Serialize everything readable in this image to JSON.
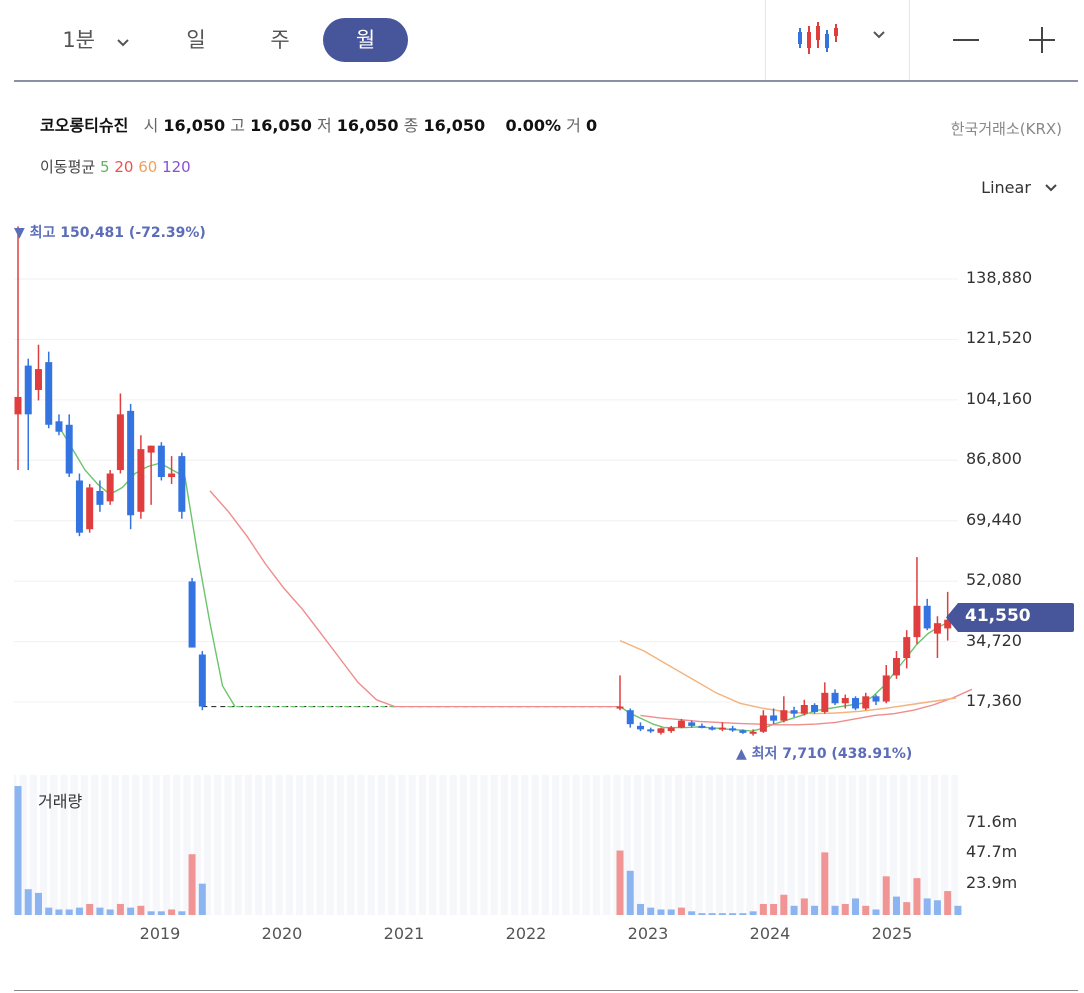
{
  "toolbar": {
    "minute_label": "1분",
    "day_label": "일",
    "week_label": "주",
    "month_label": "월",
    "minus_label": "—",
    "plus_label": "+",
    "active_color": "#47559a"
  },
  "info": {
    "name": "코오롱티슈진",
    "open_label": "시",
    "open": "16,050",
    "high_label": "고",
    "high": "16,050",
    "low_label": "저",
    "low": "16,050",
    "close_label": "종",
    "close": "16,050",
    "change": "0.00%",
    "volume_label": "거",
    "volume": "0",
    "exchange": "한국거래소(KRX)"
  },
  "ma_legend": {
    "label": "이동평균",
    "periods": [
      "5",
      "20",
      "60",
      "120"
    ],
    "colors": [
      "#5cb85c",
      "#e8534f",
      "#f0a15b",
      "#8a4fd6"
    ]
  },
  "scale_label": "Linear",
  "colors": {
    "up": "#e03e3e",
    "down": "#3474e0",
    "up_vol": "#f09494",
    "down_vol": "#8cb4f0",
    "ma5": "#6cc46c",
    "ma20": "#f08c8c",
    "ma60": "#f5b27a",
    "grid": "#f0f0f0",
    "dashed": "#333333",
    "badge": "#47559a"
  },
  "chart_data": {
    "type": "candlestick",
    "interval": "monthly",
    "price_ticks": [
      "138,880",
      "121,520",
      "104,160",
      "86,800",
      "69,440",
      "52,080",
      "34,720",
      "17,360"
    ],
    "ylim": [
      0,
      159000
    ],
    "current_price": "41,550",
    "high_note": "▼ 최고 150,481 (-72.39%)",
    "low_note": "▲ 최저 7,710 (438.91%)",
    "volume_title": "거래량",
    "volume_ticks": [
      "71.6m",
      "47.7m",
      "23.9m"
    ],
    "volume_ylim": [
      0,
      90
    ],
    "year_labels": [
      "2019",
      "2020",
      "2021",
      "2022",
      "2023",
      "2024",
      "2025"
    ],
    "flat_price": 16050,
    "segment1_candles": [
      {
        "o": 100000,
        "h": 154000,
        "l": 84000,
        "c": 105000
      },
      {
        "o": 114000,
        "h": 116000,
        "l": 84000,
        "c": 100000
      },
      {
        "o": 107000,
        "h": 120000,
        "l": 104000,
        "c": 113000
      },
      {
        "o": 115000,
        "h": 118000,
        "l": 96000,
        "c": 97000
      },
      {
        "o": 98000,
        "h": 100000,
        "l": 94000,
        "c": 95000
      },
      {
        "o": 97000,
        "h": 100000,
        "l": 82000,
        "c": 83000
      },
      {
        "o": 81000,
        "h": 83000,
        "l": 65000,
        "c": 66000
      },
      {
        "o": 67000,
        "h": 80000,
        "l": 66000,
        "c": 79000
      },
      {
        "o": 78000,
        "h": 81000,
        "l": 72000,
        "c": 74000
      },
      {
        "o": 75000,
        "h": 84000,
        "l": 74000,
        "c": 83000
      },
      {
        "o": 84000,
        "h": 106000,
        "l": 83000,
        "c": 100000
      },
      {
        "o": 101000,
        "h": 103000,
        "l": 67000,
        "c": 71000
      },
      {
        "o": 72000,
        "h": 94000,
        "l": 70000,
        "c": 90000
      },
      {
        "o": 89000,
        "h": 91000,
        "l": 74000,
        "c": 91000
      },
      {
        "o": 91000,
        "h": 92000,
        "l": 81000,
        "c": 82000
      },
      {
        "o": 82000,
        "h": 88000,
        "l": 80000,
        "c": 83000
      },
      {
        "o": 88000,
        "h": 89000,
        "l": 70000,
        "c": 72000
      },
      {
        "o": 52000,
        "h": 53000,
        "l": 33000,
        "c": 33000
      },
      {
        "o": 31000,
        "h": 32000,
        "l": 15000,
        "c": 16050
      }
    ],
    "segment1_volume": [
      {
        "v": 70,
        "up": false
      },
      {
        "v": 14,
        "up": false
      },
      {
        "v": 12,
        "up": false
      },
      {
        "v": 4,
        "up": false
      },
      {
        "v": 3,
        "up": false
      },
      {
        "v": 3,
        "up": false
      },
      {
        "v": 4,
        "up": false
      },
      {
        "v": 6,
        "up": true
      },
      {
        "v": 4,
        "up": false
      },
      {
        "v": 3,
        "up": false
      },
      {
        "v": 6,
        "up": true
      },
      {
        "v": 4,
        "up": false
      },
      {
        "v": 5,
        "up": true
      },
      {
        "v": 2,
        "up": false
      },
      {
        "v": 2,
        "up": false
      },
      {
        "v": 3,
        "up": true
      },
      {
        "v": 2,
        "up": false
      },
      {
        "v": 33,
        "up": true
      },
      {
        "v": 17,
        "up": false
      }
    ],
    "segment2_candles": [
      {
        "o": 16050,
        "h": 25000,
        "l": 15000,
        "c": 16050
      },
      {
        "o": 15000,
        "h": 15500,
        "l": 10000,
        "c": 11000
      },
      {
        "o": 10500,
        "h": 11500,
        "l": 9000,
        "c": 9500
      },
      {
        "o": 9500,
        "h": 10000,
        "l": 8500,
        "c": 9000
      },
      {
        "o": 8500,
        "h": 10000,
        "l": 8000,
        "c": 9800
      },
      {
        "o": 9000,
        "h": 10500,
        "l": 8500,
        "c": 10000
      },
      {
        "o": 10000,
        "h": 12500,
        "l": 9800,
        "c": 12000
      },
      {
        "o": 11500,
        "h": 12000,
        "l": 10000,
        "c": 10500
      },
      {
        "o": 10500,
        "h": 11200,
        "l": 9800,
        "c": 10000
      },
      {
        "o": 10000,
        "h": 10500,
        "l": 9200,
        "c": 9500
      },
      {
        "o": 9500,
        "h": 11500,
        "l": 9000,
        "c": 10000
      },
      {
        "o": 9800,
        "h": 10500,
        "l": 8800,
        "c": 9200
      },
      {
        "o": 9200,
        "h": 9500,
        "l": 8200,
        "c": 8500
      },
      {
        "o": 8500,
        "h": 9500,
        "l": 7710,
        "c": 8800
      },
      {
        "o": 8800,
        "h": 15000,
        "l": 8500,
        "c": 13500
      },
      {
        "o": 13500,
        "h": 15500,
        "l": 11000,
        "c": 12000
      },
      {
        "o": 12000,
        "h": 19000,
        "l": 11500,
        "c": 15000
      },
      {
        "o": 15000,
        "h": 16000,
        "l": 13000,
        "c": 14000
      },
      {
        "o": 14000,
        "h": 18000,
        "l": 13500,
        "c": 16500
      },
      {
        "o": 16500,
        "h": 17000,
        "l": 14000,
        "c": 14500
      },
      {
        "o": 14500,
        "h": 23000,
        "l": 14000,
        "c": 20000
      },
      {
        "o": 20000,
        "h": 21000,
        "l": 16500,
        "c": 17000
      },
      {
        "o": 17000,
        "h": 19500,
        "l": 15500,
        "c": 18500
      },
      {
        "o": 18500,
        "h": 19000,
        "l": 15000,
        "c": 15500
      },
      {
        "o": 15500,
        "h": 20000,
        "l": 15000,
        "c": 19000
      },
      {
        "o": 19000,
        "h": 19500,
        "l": 16500,
        "c": 17500
      },
      {
        "o": 17500,
        "h": 28000,
        "l": 17000,
        "c": 25000
      },
      {
        "o": 25000,
        "h": 32000,
        "l": 24000,
        "c": 30000
      },
      {
        "o": 30000,
        "h": 38000,
        "l": 27000,
        "c": 36000
      },
      {
        "o": 36000,
        "h": 59000,
        "l": 34000,
        "c": 45000
      },
      {
        "o": 45000,
        "h": 47000,
        "l": 38000,
        "c": 38500
      },
      {
        "o": 37000,
        "h": 42000,
        "l": 30000,
        "c": 40000
      },
      {
        "o": 38500,
        "h": 49000,
        "l": 35000,
        "c": 41000
      },
      {
        "o": 40000,
        "h": 45000,
        "l": 38000,
        "c": 41550
      }
    ],
    "segment2_volume": [
      {
        "v": 35,
        "up": true
      },
      {
        "v": 24,
        "up": false
      },
      {
        "v": 6,
        "up": false
      },
      {
        "v": 4,
        "up": false
      },
      {
        "v": 3,
        "up": false
      },
      {
        "v": 3,
        "up": false
      },
      {
        "v": 4,
        "up": true
      },
      {
        "v": 2,
        "up": false
      },
      {
        "v": 1,
        "up": false
      },
      {
        "v": 1,
        "up": false
      },
      {
        "v": 1,
        "up": false
      },
      {
        "v": 1,
        "up": false
      },
      {
        "v": 1,
        "up": false
      },
      {
        "v": 2,
        "up": false
      },
      {
        "v": 6,
        "up": true
      },
      {
        "v": 6,
        "up": true
      },
      {
        "v": 11,
        "up": true
      },
      {
        "v": 5,
        "up": false
      },
      {
        "v": 9,
        "up": true
      },
      {
        "v": 5,
        "up": false
      },
      {
        "v": 34,
        "up": true
      },
      {
        "v": 5,
        "up": false
      },
      {
        "v": 6,
        "up": true
      },
      {
        "v": 9,
        "up": false
      },
      {
        "v": 5,
        "up": true
      },
      {
        "v": 3,
        "up": false
      },
      {
        "v": 21,
        "up": true
      },
      {
        "v": 10,
        "up": false
      },
      {
        "v": 7,
        "up": true
      },
      {
        "v": 20,
        "up": true
      },
      {
        "v": 9,
        "up": false
      },
      {
        "v": 8,
        "up": false
      },
      {
        "v": 13,
        "up": true
      },
      {
        "v": 5,
        "up": false
      }
    ],
    "ma5_seg1": [
      96000,
      90000,
      84000,
      80000,
      77000,
      79000,
      83000,
      85000,
      86000,
      84000,
      82000,
      60000,
      40000,
      22000,
      16050
    ],
    "ma5_seg2": [
      16050,
      14000,
      12500,
      11000,
      10000,
      10000,
      10000,
      10200,
      10000,
      9800,
      9500,
      9300,
      9000,
      9800,
      11000,
      12000,
      13000,
      14000,
      15000,
      15500,
      16000,
      16500,
      17000,
      19000,
      22000,
      26000,
      30000,
      34000,
      37000,
      39000,
      40500
    ],
    "ma20_seg1": [
      78000,
      72000,
      65000,
      57000,
      50000,
      44000,
      37000,
      30000,
      23000,
      18000,
      16050
    ],
    "ma20_seg2": [
      13500,
      12800,
      12300,
      11800,
      11500,
      11200,
      11000,
      10800,
      10800,
      11000,
      11500,
      12500,
      13500,
      14000,
      15000,
      16500,
      18500,
      21000
    ],
    "ma60_seg2": [
      35000,
      32000,
      28000,
      24000,
      20000,
      17000,
      15500,
      14500,
      14000,
      14200,
      14700,
      15500,
      16500,
      17500,
      18500
    ]
  }
}
